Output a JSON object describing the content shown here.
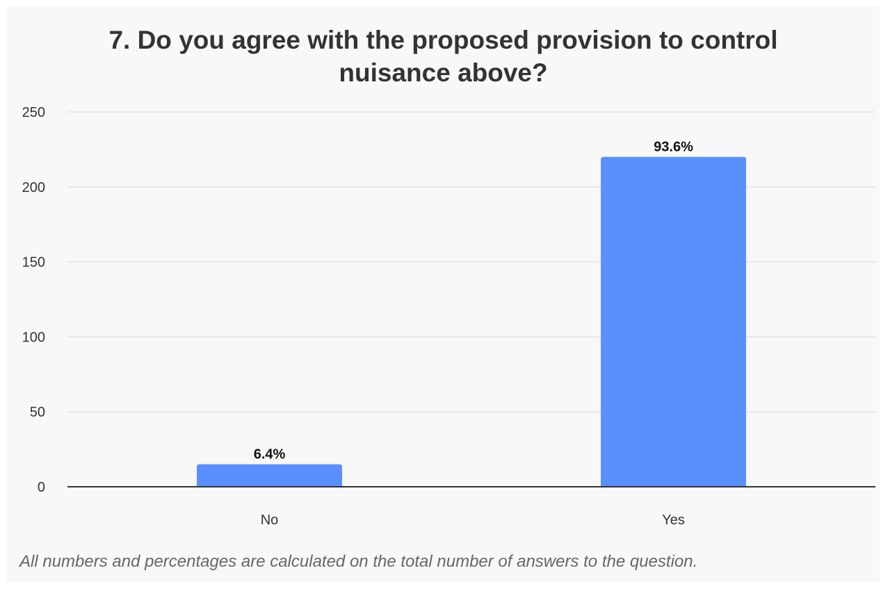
{
  "chart_data": {
    "type": "bar",
    "title": "7. Do you agree with the proposed provision to control nuisance above?",
    "categories": [
      "No",
      "Yes"
    ],
    "values": [
      15,
      220
    ],
    "data_labels": [
      "6.4%",
      "93.6%"
    ],
    "ylim": [
      0,
      250
    ],
    "yticks": [
      "0",
      "50",
      "100",
      "150",
      "200",
      "250"
    ],
    "grid": true,
    "bar_color": "#5a8fff",
    "footnote": "All numbers and percentages are calculated on the total number of answers to the question."
  }
}
